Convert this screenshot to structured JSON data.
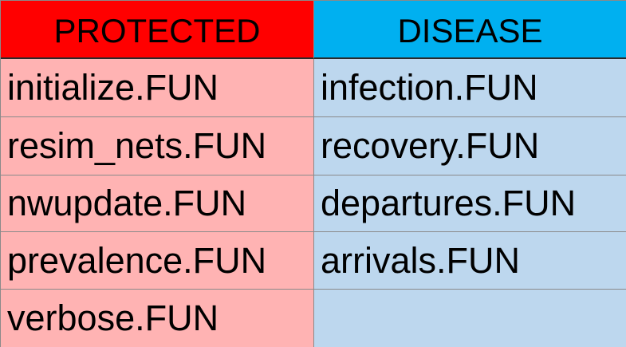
{
  "colors": {
    "protected_header": "#ff0000",
    "disease_header": "#00b0f0",
    "protected_body": "#ffb3b3",
    "disease_body": "#bdd7ee"
  },
  "headers": {
    "protected": "PROTECTED",
    "disease": "DISEASE"
  },
  "protected_items": [
    "initialize.FUN",
    "resim_nets.FUN",
    "nwupdate.FUN",
    "prevalence.FUN",
    "verbose.FUN"
  ],
  "disease_items": [
    "infection.FUN",
    "recovery.FUN",
    "departures.FUN",
    "arrivals.FUN",
    ""
  ]
}
